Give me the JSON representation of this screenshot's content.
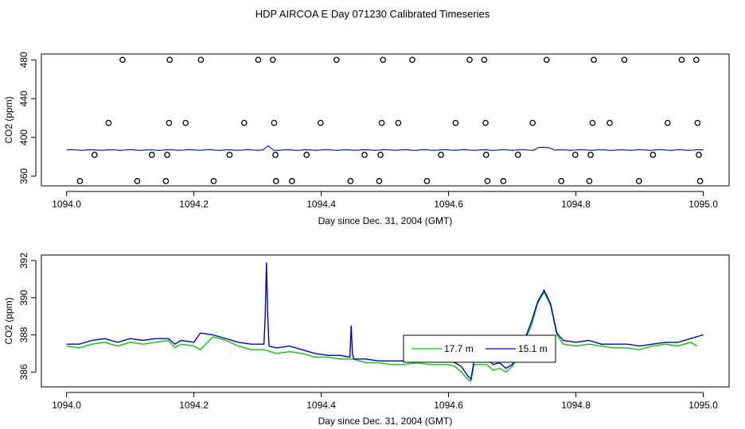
{
  "title": "HDP AIRCOA E  Day 071230  Calibrated Timeseries",
  "chart_data": [
    {
      "type": "scatter+line",
      "xlabel": "Day since Dec. 31, 2004 (GMT)",
      "ylabel": "CO2 (ppm)",
      "xlim": [
        1094.0,
        1095.0
      ],
      "ylim": [
        350,
        486
      ],
      "xticks": [
        1094.0,
        1094.2,
        1094.4,
        1094.6,
        1094.8,
        1095.0
      ],
      "xtick_labels": [
        "1094.0",
        "1094.2",
        "1094.4",
        "1094.6",
        "1094.8",
        "1095.0"
      ],
      "yticks": [
        360,
        400,
        440,
        480
      ],
      "ytick_labels": [
        "360",
        "400",
        "440",
        "480"
      ],
      "points": [
        [
          1094.021,
          355
        ],
        [
          1094.044,
          382
        ],
        [
          1094.066,
          415
        ],
        [
          1094.088,
          480
        ],
        [
          1094.111,
          355
        ],
        [
          1094.134,
          382
        ],
        [
          1094.156,
          355
        ],
        [
          1094.158,
          382
        ],
        [
          1094.161,
          415
        ],
        [
          1094.162,
          480
        ],
        [
          1094.187,
          415
        ],
        [
          1094.211,
          480
        ],
        [
          1094.231,
          355
        ],
        [
          1094.256,
          382
        ],
        [
          1094.279,
          415
        ],
        [
          1094.301,
          480
        ],
        [
          1094.324,
          480
        ],
        [
          1094.326,
          415
        ],
        [
          1094.328,
          382
        ],
        [
          1094.329,
          355
        ],
        [
          1094.354,
          355
        ],
        [
          1094.377,
          382
        ],
        [
          1094.399,
          415
        ],
        [
          1094.424,
          480
        ],
        [
          1094.446,
          355
        ],
        [
          1094.468,
          382
        ],
        [
          1094.491,
          355
        ],
        [
          1094.493,
          382
        ],
        [
          1094.495,
          415
        ],
        [
          1094.497,
          480
        ],
        [
          1094.521,
          415
        ],
        [
          1094.543,
          480
        ],
        [
          1094.566,
          355
        ],
        [
          1094.588,
          382
        ],
        [
          1094.611,
          415
        ],
        [
          1094.633,
          480
        ],
        [
          1094.656,
          480
        ],
        [
          1094.658,
          415
        ],
        [
          1094.659,
          382
        ],
        [
          1094.661,
          355
        ],
        [
          1094.686,
          355
        ],
        [
          1094.709,
          382
        ],
        [
          1094.732,
          415
        ],
        [
          1094.754,
          480
        ],
        [
          1094.777,
          355
        ],
        [
          1094.799,
          382
        ],
        [
          1094.821,
          355
        ],
        [
          1094.823,
          382
        ],
        [
          1094.826,
          415
        ],
        [
          1094.828,
          480
        ],
        [
          1094.853,
          415
        ],
        [
          1094.876,
          480
        ],
        [
          1094.899,
          355
        ],
        [
          1094.921,
          382
        ],
        [
          1094.944,
          415
        ],
        [
          1094.966,
          480
        ],
        [
          1094.989,
          480
        ],
        [
          1094.991,
          415
        ],
        [
          1094.993,
          382
        ],
        [
          1094.995,
          355
        ]
      ],
      "flat_line_value": 387
    },
    {
      "type": "line",
      "xlabel": "Day since Dec. 31, 2004 (GMT)",
      "ylabel": "CO2 (ppm)",
      "xlim": [
        1094.0,
        1095.0
      ],
      "ylim": [
        385.2,
        392.3
      ],
      "xticks": [
        1094.0,
        1094.2,
        1094.4,
        1094.6,
        1094.8,
        1095.0
      ],
      "xtick_labels": [
        "1094.0",
        "1094.2",
        "1094.4",
        "1094.6",
        "1094.8",
        "1095.0"
      ],
      "yticks": [
        386,
        388,
        390,
        392
      ],
      "ytick_labels": [
        "386",
        "388",
        "390",
        "392"
      ],
      "legend": {
        "position": "center-right",
        "entries": [
          {
            "label": "17.7 m",
            "color": "#00cc00"
          },
          {
            "label": "15.1 m",
            "color": "#0000cc"
          }
        ]
      },
      "series": [
        {
          "name": "17.7 m",
          "color": "#00cc00",
          "x": [
            1094.0,
            1094.02,
            1094.04,
            1094.06,
            1094.08,
            1094.1,
            1094.12,
            1094.14,
            1094.16,
            1094.17,
            1094.18,
            1094.2,
            1094.21,
            1094.23,
            1094.25,
            1094.27,
            1094.29,
            1094.31,
            1094.33,
            1094.35,
            1094.37,
            1094.39,
            1094.41,
            1094.43,
            1094.45,
            1094.47,
            1094.49,
            1094.51,
            1094.53,
            1094.55,
            1094.57,
            1094.59,
            1094.6,
            1094.61,
            1094.62,
            1094.63,
            1094.635,
            1094.64,
            1094.65,
            1094.66,
            1094.67,
            1094.68,
            1094.69,
            1094.7,
            1094.71,
            1094.72,
            1094.73,
            1094.74,
            1094.75,
            1094.76,
            1094.77,
            1094.78,
            1094.8,
            1094.82,
            1094.84,
            1094.86,
            1094.88,
            1094.9,
            1094.92,
            1094.94,
            1094.96,
            1094.98,
            1094.99
          ],
          "values": [
            387.4,
            387.3,
            387.5,
            387.6,
            387.4,
            387.6,
            387.5,
            387.6,
            387.7,
            387.3,
            387.5,
            387.4,
            387.2,
            387.9,
            387.7,
            387.4,
            387.2,
            387.2,
            387.0,
            387.1,
            387.0,
            386.8,
            386.8,
            386.7,
            386.7,
            386.5,
            386.5,
            386.4,
            386.4,
            386.5,
            386.4,
            386.4,
            386.4,
            386.3,
            386.0,
            385.6,
            385.5,
            386.4,
            386.4,
            386.4,
            386.1,
            386.2,
            386.0,
            386.3,
            386.8,
            387.7,
            388.5,
            389.7,
            390.3,
            389.6,
            388.0,
            387.5,
            387.4,
            387.5,
            387.4,
            387.3,
            387.3,
            387.2,
            387.4,
            387.5,
            387.4,
            387.6,
            387.4
          ]
        },
        {
          "name": "15.1 m",
          "color": "#0000cc",
          "x": [
            1094.0,
            1094.02,
            1094.04,
            1094.06,
            1094.08,
            1094.1,
            1094.12,
            1094.14,
            1094.16,
            1094.17,
            1094.18,
            1094.2,
            1094.21,
            1094.23,
            1094.25,
            1094.27,
            1094.29,
            1094.31,
            1094.312,
            1094.314,
            1094.316,
            1094.318,
            1094.33,
            1094.35,
            1094.37,
            1094.39,
            1094.41,
            1094.43,
            1094.445,
            1094.447,
            1094.449,
            1094.451,
            1094.47,
            1094.49,
            1094.51,
            1094.53,
            1094.55,
            1094.57,
            1094.59,
            1094.6,
            1094.61,
            1094.62,
            1094.63,
            1094.635,
            1094.64,
            1094.65,
            1094.66,
            1094.67,
            1094.68,
            1094.69,
            1094.7,
            1094.71,
            1094.72,
            1094.73,
            1094.74,
            1094.75,
            1094.76,
            1094.77,
            1094.78,
            1094.8,
            1094.82,
            1094.84,
            1094.86,
            1094.88,
            1094.9,
            1094.92,
            1094.94,
            1094.96,
            1094.98,
            1095.0
          ],
          "values": [
            387.5,
            387.5,
            387.7,
            387.8,
            387.6,
            387.8,
            387.7,
            387.8,
            387.8,
            387.5,
            387.7,
            387.6,
            388.1,
            388.0,
            387.8,
            387.6,
            387.5,
            387.5,
            389.0,
            391.9,
            389.0,
            387.4,
            387.3,
            387.4,
            387.2,
            387.0,
            386.9,
            386.9,
            386.8,
            388.5,
            387.0,
            386.7,
            386.7,
            386.6,
            386.6,
            386.6,
            386.6,
            386.6,
            386.6,
            386.6,
            386.5,
            386.3,
            385.8,
            385.6,
            386.6,
            386.7,
            386.7,
            386.4,
            386.5,
            386.2,
            386.4,
            387.0,
            387.8,
            388.7,
            389.8,
            390.4,
            389.7,
            388.1,
            387.7,
            387.6,
            387.7,
            387.5,
            387.5,
            387.5,
            387.4,
            387.5,
            387.6,
            387.6,
            387.8,
            388.0
          ]
        }
      ]
    }
  ]
}
